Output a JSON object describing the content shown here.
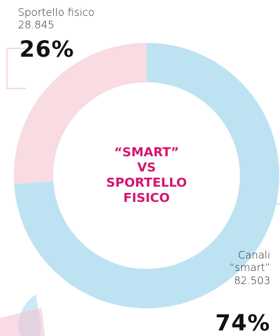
{
  "chart_data": {
    "type": "donut",
    "title_lines": [
      "“SMART”",
      "VS",
      "SPORTELLO",
      "FISICO"
    ],
    "categories": [
      "Sportello fisico",
      "Canali “smart”"
    ],
    "count_labels": [
      "28.845",
      "82.503"
    ],
    "values": [
      26,
      74
    ],
    "value_labels": [
      "26%",
      "74%"
    ],
    "colors": [
      "#f9dbe2",
      "#bde3f3"
    ],
    "title_color": "#d6146e"
  }
}
